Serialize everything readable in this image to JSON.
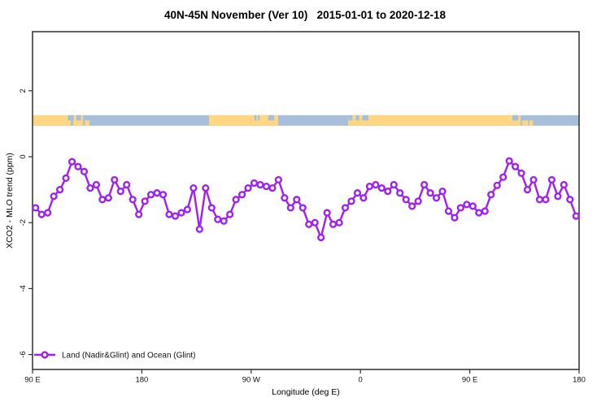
{
  "title": "40N-45N November (Ver 10)   2015-01-01 to 2020-12-18",
  "colors": {
    "series": "#A020F0",
    "land": "#FFD782",
    "ocean": "#A8BFDB",
    "axis": "#2F2F2F",
    "text": "#111111"
  },
  "legend": {
    "label": "Land (Nadir&Glint) and Ocean (Glint)"
  },
  "chart_data": {
    "type": "line",
    "title": "40N-45N November (Ver 10)   2015-01-01 to 2020-12-18",
    "xlabel": "Longitude (deg E)",
    "ylabel": "XCO2 - MLO trend (ppm)",
    "xlim": [
      90,
      540
    ],
    "ylim": [
      -6.45,
      3.8
    ],
    "grid": false,
    "legend_position": "bottom-left",
    "x_ticks": [
      {
        "lon": 90,
        "label": "90 E"
      },
      {
        "lon": 180,
        "label": "180"
      },
      {
        "lon": 270,
        "label": "90 W"
      },
      {
        "lon": 360,
        "label": "0"
      },
      {
        "lon": 450,
        "label": "90 E"
      },
      {
        "lon": 540,
        "label": "180"
      }
    ],
    "y_ticks": [
      {
        "value": 2,
        "label": "2"
      },
      {
        "value": 0,
        "label": "0"
      },
      {
        "value": -2,
        "label": "-2"
      },
      {
        "value": -4,
        "label": "-4"
      },
      {
        "value": -6,
        "label": "-6"
      }
    ],
    "series": [
      {
        "name": "Land (Nadir&Glint) and Ocean (Glint)",
        "marker": "open-circle",
        "x_start_lon": 92.5,
        "x_step_deg": 5,
        "values": [
          -1.55,
          -1.75,
          -1.7,
          -1.2,
          -1.0,
          -0.65,
          -0.15,
          -0.3,
          -0.45,
          -0.95,
          -0.85,
          -1.3,
          -1.25,
          -0.7,
          -1.05,
          -0.85,
          -1.3,
          -1.75,
          -1.35,
          -1.15,
          -1.1,
          -1.15,
          -1.75,
          -1.8,
          -1.7,
          -1.6,
          -0.95,
          -2.2,
          -0.95,
          -1.55,
          -1.9,
          -1.95,
          -1.75,
          -1.3,
          -1.15,
          -0.95,
          -0.8,
          -0.85,
          -0.9,
          -0.95,
          -0.7,
          -1.25,
          -1.55,
          -1.3,
          -1.55,
          -2.05,
          -2.0,
          -2.45,
          -1.7,
          -2.05,
          -2.0,
          -1.55,
          -1.35,
          -1.1,
          -1.25,
          -0.9,
          -0.85,
          -0.95,
          -1.05,
          -0.85,
          -1.1,
          -1.3,
          -1.5,
          -1.35,
          -0.85,
          -1.1,
          -1.25,
          -1.05,
          -1.65,
          -1.85,
          -1.55,
          -1.45,
          -1.5,
          -1.7,
          -1.65,
          -1.15,
          -0.87,
          -0.62,
          -0.13,
          -0.3,
          -0.5,
          -1.0,
          -0.7,
          -1.3,
          -1.3,
          -0.7,
          -1.2,
          -0.85,
          -1.3,
          -1.8
        ]
      }
    ],
    "map_band": {
      "description": "land/ocean strip for 40N-45N latitude belt",
      "y_top_value": 1.26,
      "y_bottom_value": 0.94,
      "land_segments": [
        [
          90,
          131.5
        ],
        [
          235.3,
          292.2
        ],
        [
          349.8,
          491.8
        ]
      ],
      "detail_patches": [
        {
          "from": 119,
          "to": 124,
          "half": "top",
          "color": "ocean"
        },
        {
          "from": 126,
          "to": 130,
          "half": "top",
          "color": "ocean"
        },
        {
          "from": 121.5,
          "to": 123.5,
          "half": "bottom",
          "color": "ocean"
        },
        {
          "from": 133,
          "to": 137,
          "half": "bottom",
          "color": "land"
        },
        {
          "from": 272.5,
          "to": 274.5,
          "half": "top",
          "color": "ocean"
        },
        {
          "from": 275.5,
          "to": 277,
          "half": "top",
          "color": "ocean"
        },
        {
          "from": 284,
          "to": 289,
          "half": "top",
          "color": "ocean"
        },
        {
          "from": 350,
          "to": 353.5,
          "half": "top",
          "color": "ocean"
        },
        {
          "from": 356,
          "to": 359,
          "half": "top",
          "color": "ocean"
        },
        {
          "from": 361.5,
          "to": 366.5,
          "half": "top",
          "color": "ocean"
        },
        {
          "from": 485,
          "to": 490,
          "half": "top",
          "color": "ocean"
        },
        {
          "from": 493,
          "to": 498,
          "half": "bottom",
          "color": "land"
        },
        {
          "from": 499,
          "to": 502,
          "half": "bottom",
          "color": "land"
        }
      ]
    }
  }
}
